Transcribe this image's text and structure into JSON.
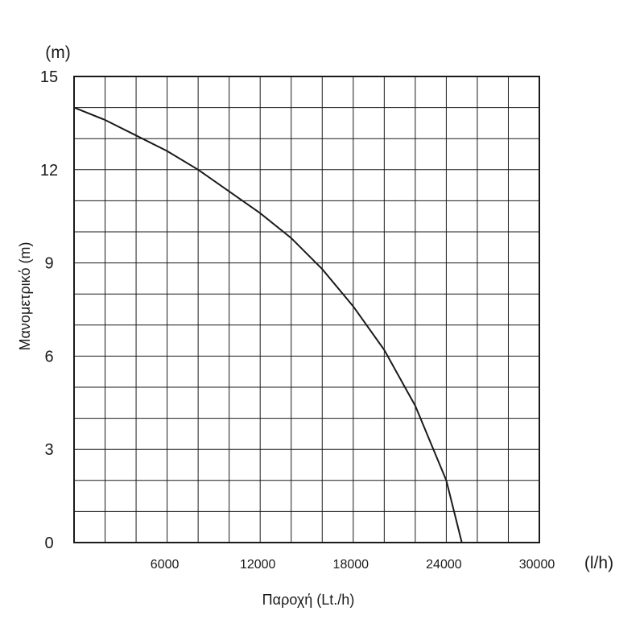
{
  "chart_data": {
    "type": "line",
    "xlabel": "Παροχή (Lt./h)",
    "ylabel": "Μανομετρικό (m)",
    "x_unit": "(l/h)",
    "y_unit": "(m)",
    "xlim": [
      0,
      30000
    ],
    "ylim": [
      0,
      15
    ],
    "x_ticks": [
      6000,
      12000,
      18000,
      24000,
      30000
    ],
    "y_ticks": [
      0,
      3,
      6,
      9,
      12,
      15
    ],
    "x_tick_labels": [
      "6000",
      "12000",
      "18000",
      "24000",
      "30000"
    ],
    "y_tick_labels": [
      "0",
      "3",
      "6",
      "9",
      "12",
      "15"
    ],
    "grid": true,
    "grid_x_step": 2000,
    "grid_y_step": 1,
    "series": [
      {
        "x": [
          0,
          2000,
          4000,
          6000,
          8000,
          10000,
          12000,
          14000,
          16000,
          18000,
          20000,
          22000,
          24000,
          25000
        ],
        "y": [
          14.0,
          13.6,
          13.1,
          12.6,
          12.0,
          11.3,
          10.6,
          9.8,
          8.8,
          7.6,
          6.2,
          4.4,
          2.0,
          0
        ]
      }
    ]
  }
}
